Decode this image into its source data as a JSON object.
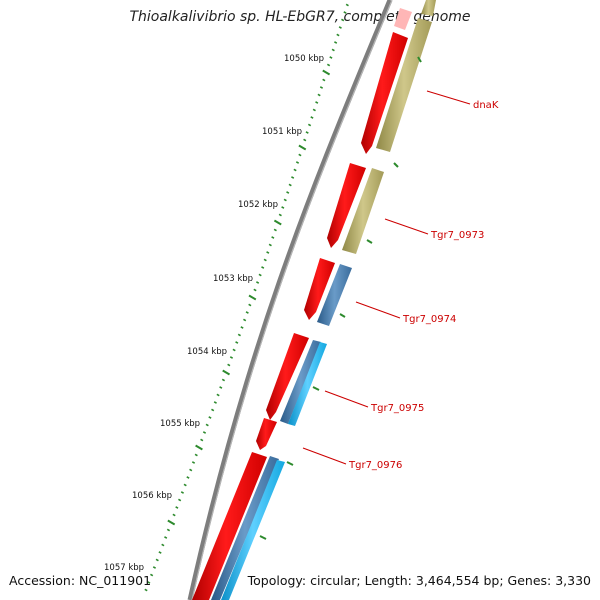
{
  "title": "Thioalkalivibrio sp. HL-EbGR7, complete genome",
  "accession": "Accession: NC_011901",
  "topology": "Topology: circular; Length: 3,464,554 bp; Genes: 3,330",
  "scale_labels": [
    "1050 kbp",
    "1051 kbp",
    "1052 kbp",
    "1053 kbp",
    "1054 kbp",
    "1055 kbp",
    "1056 kbp",
    "1057 kbp"
  ],
  "gene_labels": [
    "dnaK",
    "Tgr7_0973",
    "Tgr7_0974",
    "Tgr7_0975",
    "Tgr7_0976"
  ],
  "colors": {
    "cds": "#ff0000",
    "cds_light": "#ffb0b0",
    "olive": "#b8b06a",
    "steel": "#3f78aa",
    "cyan": "#19b8f0",
    "backbone": "#808080",
    "ticks": "#2d8a2d",
    "label": "#cc0000"
  }
}
